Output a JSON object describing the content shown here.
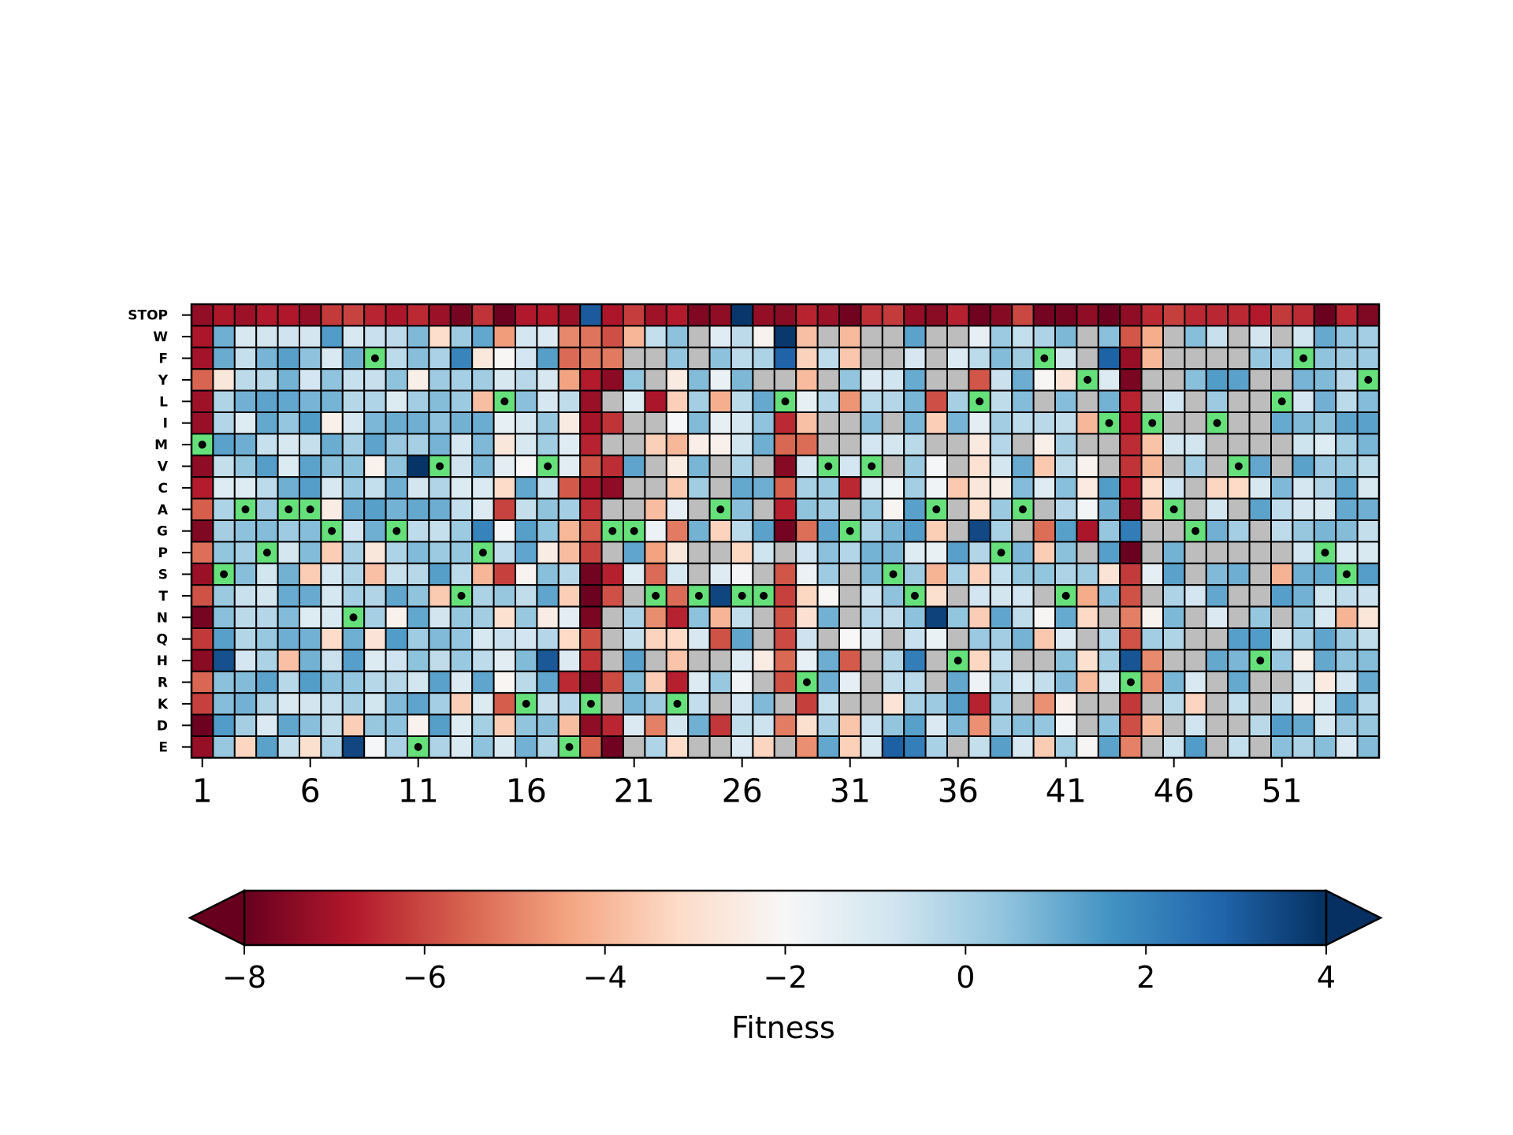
{
  "chart_data": {
    "type": "heatmap",
    "rows": [
      "STOP",
      "W",
      "F",
      "Y",
      "L",
      "I",
      "M",
      "V",
      "C",
      "A",
      "G",
      "P",
      "S",
      "T",
      "N",
      "Q",
      "H",
      "R",
      "K",
      "D",
      "E"
    ],
    "x_tick_labels": [
      "1",
      "6",
      "11",
      "16",
      "21",
      "26",
      "31",
      "36",
      "41",
      "46",
      "51"
    ],
    "x_tick_positions": [
      1,
      6,
      11,
      16,
      21,
      26,
      31,
      36,
      41,
      46,
      51
    ],
    "n_positions": 55,
    "wildtype_sequence": "MSAPAAGNFGEVTPLKVEKGGTKTATTLRVGVSTAHLPAFTYIRIAGIVHLFPSY",
    "missing_value_color": "#bdbdbd",
    "missing_marker": "gray cells indicate unmeasured variants",
    "wildtype_marker": {
      "cell_color": "#66e07a",
      "dot_color": "#000000"
    },
    "colorbar": {
      "label": "Fitness",
      "vmin": -8,
      "vmax": 4,
      "ticks": [
        "−8",
        "−6",
        "−4",
        "−2",
        "0",
        "2",
        "4"
      ],
      "tick_values": [
        -8,
        -6,
        -4,
        -2,
        0,
        2,
        4
      ],
      "extend": "both",
      "colormap": "RdBu"
    },
    "cell_values": "approximate per-position fitness pattern rendered; STOP row strongly deleterious (-6 to -8)"
  }
}
